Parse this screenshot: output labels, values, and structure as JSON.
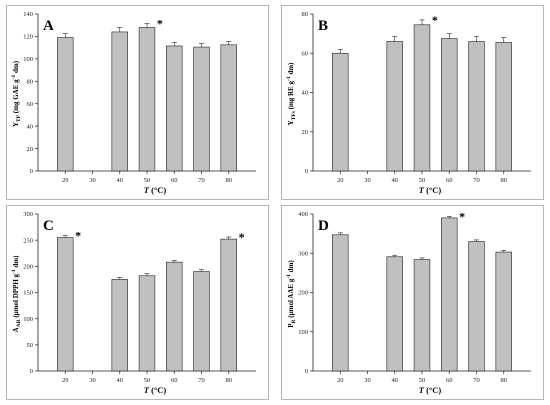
{
  "chart_data": [
    {
      "id": "A",
      "type": "bar",
      "panel_label": "A",
      "categories": [
        "20",
        "30",
        "40",
        "50",
        "60",
        "70",
        "80"
      ],
      "values": [
        119,
        null,
        124,
        128,
        111.5,
        110.5,
        112.5
      ],
      "errors": [
        3.5,
        null,
        4,
        3.5,
        3,
        3,
        3
      ],
      "significant": [
        false,
        false,
        false,
        true,
        false,
        false,
        false
      ],
      "ylabel": "Y_TP (mg GAE g⁻¹ dm)",
      "ylabel_main": "Y",
      "ylabel_sub": "TP",
      "ylabel_pre": " (mg GAE g",
      "ylabel_sup": "-1",
      "ylabel_post": " dm)",
      "xlabel_t": "T",
      "xlabel_rest": " (°C)",
      "ylim": [
        0,
        140
      ],
      "yticks": [
        0,
        20,
        40,
        60,
        80,
        100,
        120,
        140
      ],
      "ytick_labels": [
        "0",
        "20",
        "40",
        "60",
        "80",
        "100",
        "120",
        "140"
      ],
      "star_symbol": "*",
      "grid": false
    },
    {
      "id": "B",
      "type": "bar",
      "panel_label": "B",
      "categories": [
        "20",
        "30",
        "40",
        "50",
        "60",
        "70",
        "80"
      ],
      "values": [
        60,
        null,
        66,
        74.5,
        67.5,
        66,
        65.5
      ],
      "errors": [
        2,
        null,
        2.5,
        2.5,
        2.5,
        2.5,
        2.5
      ],
      "significant": [
        false,
        false,
        false,
        true,
        false,
        false,
        false
      ],
      "ylabel": "Y_TFs (mg RE g⁻¹ dm)",
      "ylabel_main": "Y",
      "ylabel_sub": "TFs",
      "ylabel_pre": " (mg RE g",
      "ylabel_sup": "-1",
      "ylabel_post": " dm)",
      "xlabel_t": "T",
      "xlabel_rest": " (°C)",
      "ylim": [
        0,
        80
      ],
      "yticks": [
        0,
        20,
        40,
        60,
        80
      ],
      "ytick_labels": [
        "0",
        "20",
        "40",
        "60",
        "80"
      ],
      "star_symbol": "*",
      "grid": false
    },
    {
      "id": "C",
      "type": "bar",
      "panel_label": "C",
      "categories": [
        "20",
        "30",
        "40",
        "50",
        "60",
        "70",
        "80"
      ],
      "values": [
        255,
        null,
        175,
        182,
        208,
        190,
        252
      ],
      "errors": [
        3.5,
        null,
        4,
        4,
        3.5,
        3.5,
        4
      ],
      "significant": [
        true,
        false,
        false,
        false,
        false,
        false,
        true
      ],
      "ylabel": "A_AR (µmol DPPH g⁻¹ dm)",
      "ylabel_main": "A",
      "ylabel_sub": "AR",
      "ylabel_pre": " (µmol DPPH g",
      "ylabel_sup": "-1",
      "ylabel_post": " dm)",
      "xlabel_t": "T",
      "xlabel_rest": " (°C)",
      "ylim": [
        0,
        300
      ],
      "yticks": [
        0,
        50,
        100,
        150,
        200,
        250,
        300
      ],
      "ytick_labels": [
        "0",
        "50",
        "100",
        "150",
        "200",
        "250",
        "300"
      ],
      "star_symbol": "*",
      "grid": false
    },
    {
      "id": "D",
      "type": "bar",
      "panel_label": "D",
      "categories": [
        "20",
        "30",
        "40",
        "50",
        "60",
        "70",
        "80"
      ],
      "values": [
        347,
        null,
        291,
        284,
        390,
        330,
        303
      ],
      "errors": [
        5,
        null,
        4,
        4,
        4,
        4,
        4
      ],
      "significant": [
        false,
        false,
        false,
        false,
        true,
        false,
        false
      ],
      "ylabel": "P_R (µmol AAE g⁻¹ dm)",
      "ylabel_main": "P",
      "ylabel_sub": "R",
      "ylabel_pre": " (µmol AAE g",
      "ylabel_sup": "-1",
      "ylabel_post": " dm)",
      "xlabel_t": "T",
      "xlabel_rest": " (°C)",
      "ylim": [
        0,
        400
      ],
      "yticks": [
        0,
        100,
        200,
        300,
        400
      ],
      "ytick_labels": [
        "0",
        "100",
        "200",
        "300",
        "400"
      ],
      "star_symbol": "*",
      "grid": false
    }
  ],
  "colors": {
    "bar_fill": "#c0c0c0",
    "bar_stroke": "#222222",
    "axis": "#222222",
    "panel_border": "#b5b5b5"
  }
}
